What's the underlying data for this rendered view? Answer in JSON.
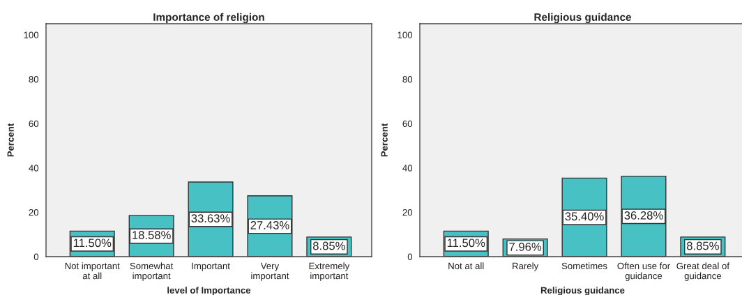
{
  "chart_data": [
    {
      "type": "bar",
      "title": "Importance of religion",
      "xlabel": "level of Importance",
      "ylabel": "Percent",
      "categories": [
        "Not important\nat all",
        "Somewhat\nimportant",
        "Important",
        "Very\nimportant",
        "Extremely\nimportant"
      ],
      "values": [
        11.5,
        18.58,
        33.63,
        27.43,
        8.85
      ],
      "value_labels": [
        "11.50%",
        "18.58%",
        "33.63%",
        "27.43%",
        "8.85%"
      ],
      "color": "#48c1c4",
      "ylim": [
        0,
        105
      ],
      "yticks": [
        0,
        20,
        40,
        60,
        80,
        100
      ],
      "grid": false,
      "legend": false
    },
    {
      "type": "bar",
      "title": "Religious guidance",
      "xlabel": "Religious guidance",
      "ylabel": "Percent",
      "categories": [
        "Not at all",
        "Rarely",
        "Sometimes",
        "Often use for\nguidance",
        "Great deal of\nguidance"
      ],
      "values": [
        11.5,
        7.96,
        35.4,
        36.28,
        8.85
      ],
      "value_labels": [
        "11.50%",
        "7.96%",
        "35.40%",
        "36.28%",
        "8.85%"
      ],
      "color": "#48c1c4",
      "ylim": [
        0,
        105
      ],
      "yticks": [
        0,
        20,
        40,
        60,
        80,
        100
      ],
      "grid": false,
      "legend": false
    }
  ]
}
